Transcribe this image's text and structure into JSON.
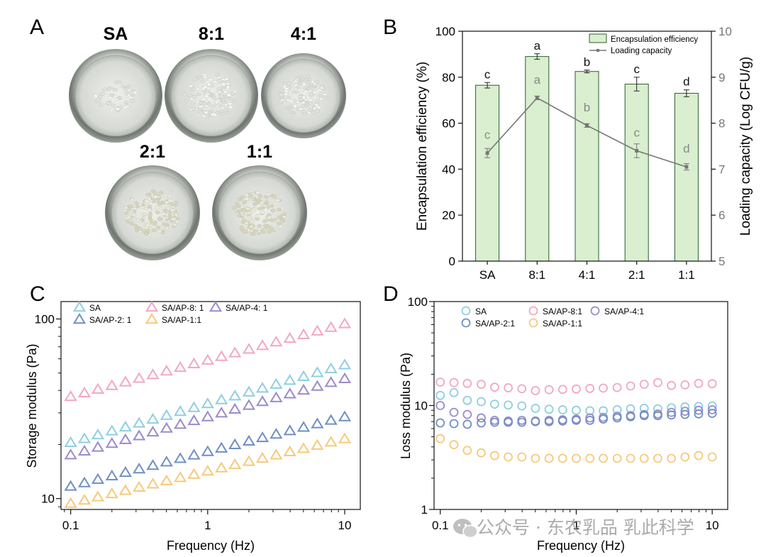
{
  "panels": {
    "A": "A",
    "B": "B",
    "C": "C",
    "D": "D"
  },
  "panel_a": {
    "dishes": [
      {
        "label": "SA",
        "beads": "sparse"
      },
      {
        "label": "8:1",
        "beads": "medium"
      },
      {
        "label": "4:1",
        "beads": "medium"
      },
      {
        "label": "2:1",
        "beads": "dense"
      },
      {
        "label": "1:1",
        "beads": "dense"
      }
    ]
  },
  "colors": {
    "bar_fill": "#d9efcf",
    "bar_stroke": "#2e5d2e",
    "line": "#777777",
    "SA": "#8ecfe0",
    "SA_AP_8_1": "#f2a7c2",
    "SA_AP_4_1": "#9b8bcc",
    "SA_AP_2_1": "#6f8fc4",
    "SA_AP_1_1": "#f7c97a"
  },
  "watermark": {
    "text": "公众号 · 东农乳品 乳此科学",
    "icon": "wechat-icon"
  },
  "chart_data": [
    {
      "id": "B",
      "type": "bar",
      "categories": [
        "SA",
        "8:1",
        "4:1",
        "2:1",
        "1:1"
      ],
      "xtick_labels": [
        "SA",
        "8:1",
        "4:1",
        "2:1",
        "1:1"
      ],
      "ylabel": "Encapsulation efficiency (%)",
      "ylabel_right": "Loading capacity (Log CFU/g)",
      "ylim": [
        0,
        100
      ],
      "ylim_right": [
        5,
        10
      ],
      "yticks": [
        "0",
        "20",
        "40",
        "60",
        "80",
        "100"
      ],
      "yticks_right": [
        "5",
        "6",
        "7",
        "8",
        "9",
        "10"
      ],
      "legend": {
        "bar": "Encapsulation efficiency",
        "line": "Loading capacity",
        "placement": "top-right"
      },
      "series": [
        {
          "name": "Encapsulation efficiency",
          "kind": "bar",
          "values": [
            76.5,
            89,
            82.5,
            77,
            73
          ],
          "errors": [
            1.2,
            1.2,
            0.6,
            3,
            1.5
          ],
          "letters": [
            "c",
            "a",
            "b",
            "c",
            "d"
          ]
        },
        {
          "name": "Loading capacity",
          "kind": "line",
          "axis": "right",
          "values": [
            7.35,
            8.55,
            7.95,
            7.4,
            7.05
          ],
          "errors": [
            0.1,
            0.04,
            0.04,
            0.15,
            0.07
          ],
          "letters": [
            "c",
            "a",
            "b",
            "c",
            "d"
          ]
        }
      ]
    },
    {
      "id": "C",
      "type": "scatter",
      "marker": "triangle",
      "xscale": "log",
      "yscale": "log",
      "xlabel": "Frequency (Hz)",
      "ylabel": "Storage modulus (Pa)",
      "xlim": [
        0.085,
        13
      ],
      "ylim": [
        8.7,
        125
      ],
      "xticks": [
        {
          "v": 0.1,
          "label": "0.1"
        },
        {
          "v": 1,
          "label": "1"
        },
        {
          "v": 10,
          "label": "10"
        }
      ],
      "yticks": [
        {
          "v": 10,
          "label": "10"
        },
        {
          "v": 100,
          "label": "100"
        }
      ],
      "x": [
        0.1,
        0.126,
        0.158,
        0.2,
        0.251,
        0.316,
        0.398,
        0.501,
        0.631,
        0.794,
        1,
        1.26,
        1.58,
        2,
        2.51,
        3.16,
        3.98,
        5.01,
        6.31,
        7.94,
        10
      ],
      "series": [
        {
          "name": "SA",
          "key": "SA",
          "start": 20.5,
          "end": 55.5
        },
        {
          "name": "SA/AP-8: 1",
          "key": "SA_AP_8_1",
          "start": 37,
          "end": 94
        },
        {
          "name": "SA/AP-4: 1",
          "key": "SA_AP_4_1",
          "start": 17.5,
          "end": 46.5
        },
        {
          "name": "SA/AP-2: 1",
          "key": "SA_AP_2_1",
          "start": 11.7,
          "end": 28.5
        },
        {
          "name": "SA/AP-1:1",
          "key": "SA_AP_1_1",
          "start": 9.4,
          "end": 21.5
        }
      ]
    },
    {
      "id": "D",
      "type": "scatter",
      "marker": "circle",
      "xscale": "log",
      "yscale": "log",
      "xlabel": "Frequency (Hz)",
      "ylabel": "Loss modulus (Pa)",
      "xlim": [
        0.09,
        13
      ],
      "ylim": [
        1,
        100
      ],
      "xticks": [
        {
          "v": 0.1,
          "label": "0.1"
        },
        {
          "v": 1,
          "label": "1"
        },
        {
          "v": 10,
          "label": "10"
        }
      ],
      "yticks": [
        {
          "v": 1,
          "label": "1"
        },
        {
          "v": 10,
          "label": "10"
        },
        {
          "v": 100,
          "label": "100"
        }
      ],
      "x": [
        0.1,
        0.126,
        0.158,
        0.2,
        0.251,
        0.316,
        0.398,
        0.501,
        0.631,
        0.794,
        1,
        1.26,
        1.58,
        2,
        2.51,
        3.16,
        3.98,
        5.01,
        6.31,
        7.94,
        10
      ],
      "series": [
        {
          "name": "SA",
          "key": "SA",
          "values": [
            12.5,
            13.3,
            11.2,
            10.9,
            10.3,
            10.1,
            9.9,
            9.4,
            9.2,
            9.1,
            9.0,
            8.9,
            8.9,
            9.1,
            9.3,
            9.4,
            9.3,
            9.5,
            9.7,
            9.8,
            9.9
          ]
        },
        {
          "name": "SA/AP-8:1",
          "key": "SA_AP_8_1",
          "values": [
            16.8,
            16.6,
            16.3,
            16.0,
            15.0,
            14.8,
            14.5,
            13.9,
            14.2,
            14.3,
            14.4,
            14.6,
            14.7,
            14.9,
            15.4,
            16.0,
            16.6,
            15.6,
            15.8,
            16.3,
            16.2
          ]
        },
        {
          "name": "SA/AP-4:1",
          "key": "SA_AP_4_1",
          "values": [
            10.0,
            8.6,
            8.2,
            7.6,
            7.2,
            7.1,
            7.2,
            7.1,
            7.2,
            7.3,
            7.4,
            7.6,
            7.7,
            7.9,
            8.0,
            8.2,
            8.3,
            8.6,
            8.8,
            9.0,
            9.1
          ]
        },
        {
          "name": "SA/AP-2:1",
          "key": "SA_AP_2_1",
          "values": [
            6.8,
            6.7,
            6.6,
            6.8,
            6.9,
            6.9,
            6.9,
            7.0,
            7.0,
            7.1,
            7.2,
            7.2,
            7.4,
            7.6,
            7.8,
            8.0,
            8.0,
            8.1,
            8.2,
            8.3,
            8.4
          ]
        },
        {
          "name": "SA/AP-1:1",
          "key": "SA_AP_1_1",
          "values": [
            4.8,
            4.2,
            3.7,
            3.5,
            3.3,
            3.2,
            3.2,
            3.1,
            3.1,
            3.1,
            3.1,
            3.1,
            3.1,
            3.1,
            3.1,
            3.1,
            3.1,
            3.1,
            3.2,
            3.3,
            3.2
          ]
        }
      ]
    }
  ]
}
